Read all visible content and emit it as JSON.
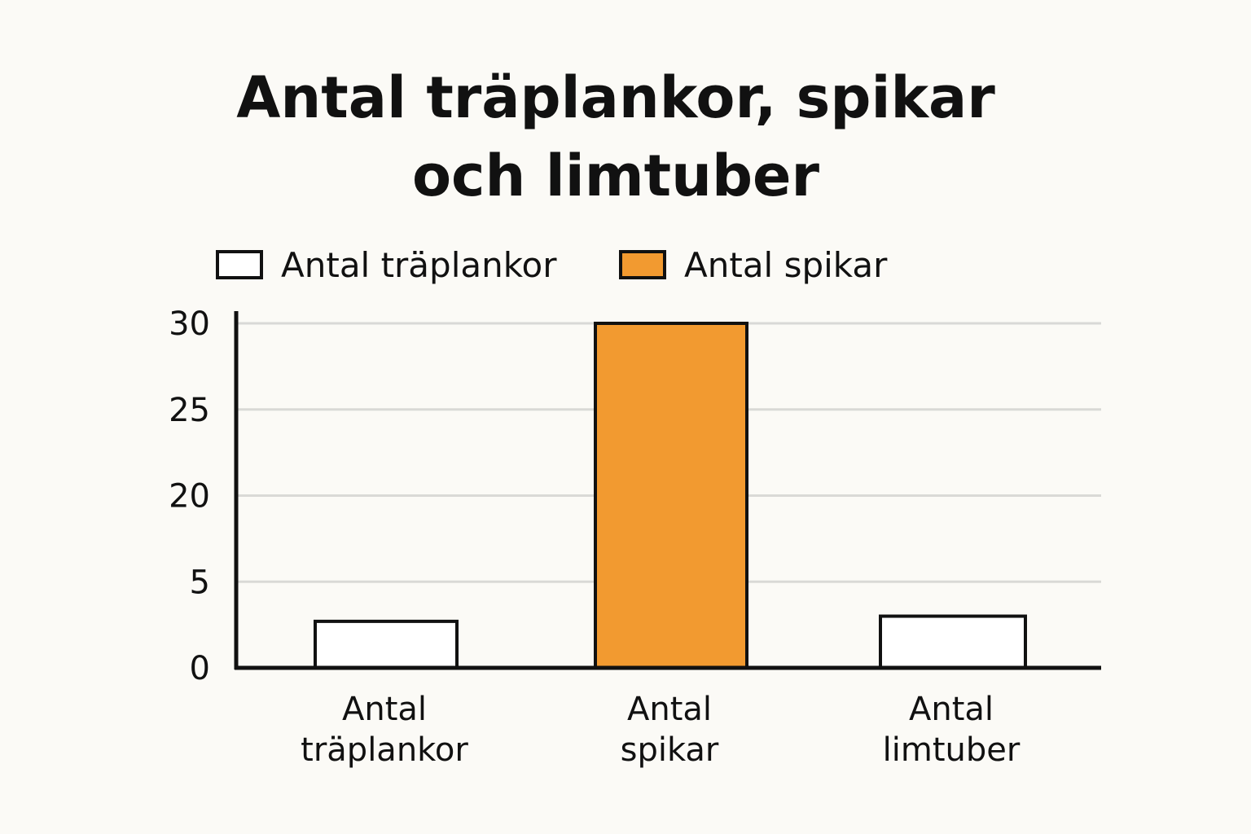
{
  "chart_data": {
    "type": "bar",
    "title_lines": [
      "Antal träplankor, spikar",
      "och limtuber"
    ],
    "xlabel": "",
    "ylabel": "",
    "categories": [
      [
        "Antal",
        "träplankor"
      ],
      [
        "Antal",
        "spikar"
      ],
      [
        "Antal",
        "limtuber"
      ]
    ],
    "values": [
      2.7,
      30,
      3
    ],
    "bar_fills": [
      "#ffffff",
      "#f29a30",
      "#ffffff"
    ],
    "yticks": [
      0,
      5,
      20,
      25,
      30
    ],
    "ylim": [
      0,
      30
    ],
    "grid": true,
    "legend": {
      "placement": "top",
      "entries": [
        {
          "label": "Antal träplankor",
          "color": "#ffffff"
        },
        {
          "label": "Antal spikar",
          "color": "#f29a30"
        }
      ]
    },
    "colors": {
      "accent": "#f29a30",
      "outline": "#111111",
      "grid": "#d9d9d6",
      "background": "#fbfaf6"
    }
  }
}
